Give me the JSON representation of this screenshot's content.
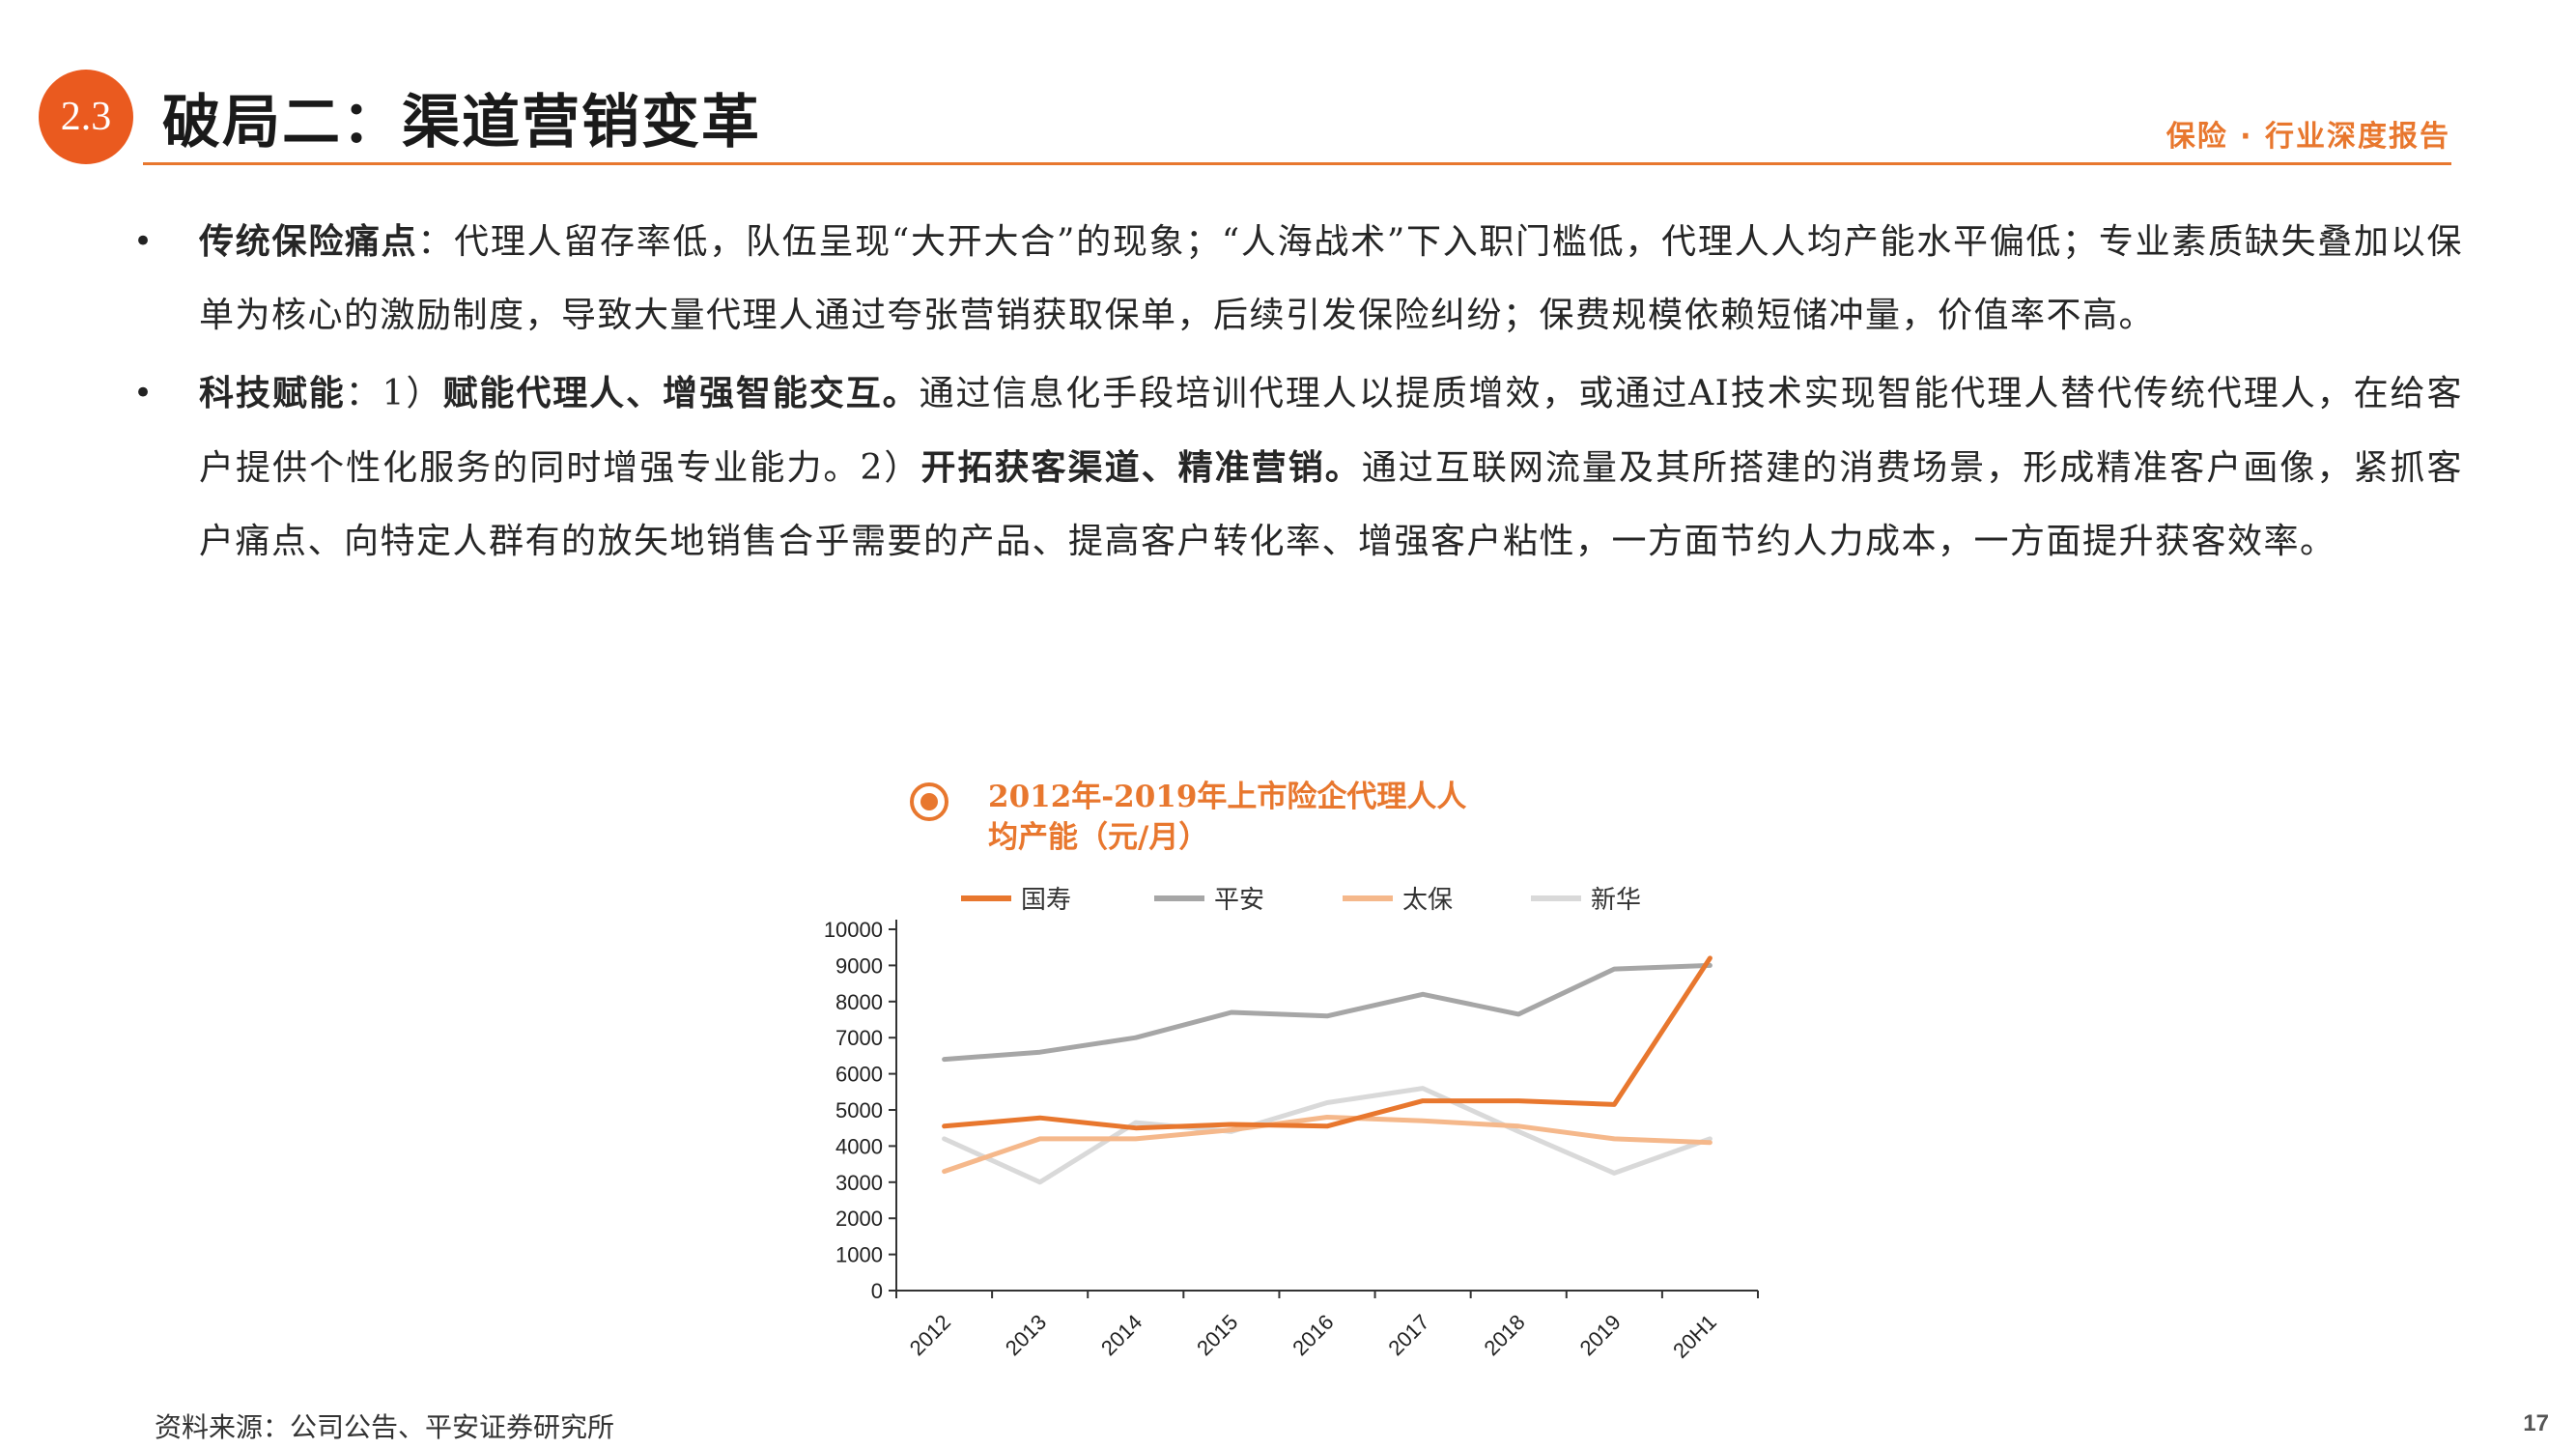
{
  "header": {
    "section_number": "2.3",
    "title": "破局二：渠道营销变革",
    "report_tag": "保险 · 行业深度报告"
  },
  "bullets": [
    {
      "lead": "传统保险痛点",
      "lead_sep": "：",
      "text": "代理人留存率低，队伍呈现“大开大合”的现象；“人海战术”下入职门槛低，代理人人均产能水平偏低；专业素质缺失叠加以保单为核心的激励制度，导致大量代理人通过夸张营销获取保单，后续引发保险纠纷；保费规模依赖短储冲量，价值率不高。"
    },
    {
      "lead": "科技赋能",
      "lead_sep": "：",
      "p1_label": "1）",
      "p1_bold": "赋能代理人、增强智能交互。",
      "p1_text": "通过信息化手段培训代理人以提质增效，或通过AI技术实现智能代理人替代传统代理人，在给客户提供个性化服务的同时增强专业能力。",
      "p2_label": "2）",
      "p2_bold": "开拓获客渠道、精准营销。",
      "p2_text": "通过互联网流量及其所搭建的消费场景，形成精准客户画像，紧抓客户痛点、向特定人群有的放矢地销售合乎需要的产品、提高客户转化率、增强客户粘性，一方面节约人力成本，一方面提升获客效率。"
    }
  ],
  "chart_data": {
    "type": "line",
    "title": "2012年-2019年上市险企代理人人均产能（元/月）",
    "categories": [
      "2012",
      "2013",
      "2014",
      "2015",
      "2016",
      "2017",
      "2018",
      "2019",
      "20H1"
    ],
    "series": [
      {
        "name": "国寿",
        "color": "#e8772e",
        "values": [
          4550,
          4780,
          4500,
          4600,
          4550,
          5250,
          5250,
          5150,
          9200
        ]
      },
      {
        "name": "平安",
        "color": "#a6a6a6",
        "values": [
          6400,
          6600,
          7000,
          7700,
          7600,
          8200,
          7650,
          8900,
          9000
        ]
      },
      {
        "name": "太保",
        "color": "#f5b88b",
        "values": [
          3300,
          4200,
          4200,
          4450,
          4800,
          4700,
          4550,
          4200,
          4100
        ]
      },
      {
        "name": "新华",
        "color": "#d9d9d9",
        "values": [
          4200,
          3000,
          4650,
          4400,
          5200,
          5600,
          4400,
          3250,
          4200
        ]
      }
    ],
    "ylim": [
      0,
      10000
    ],
    "yticks": [
      0,
      1000,
      2000,
      3000,
      4000,
      5000,
      6000,
      7000,
      8000,
      9000,
      10000
    ],
    "legend_position": "top",
    "grid": false
  },
  "footer": {
    "source": "资料来源：公司公告、平安证券研究所",
    "page_number": "17"
  }
}
